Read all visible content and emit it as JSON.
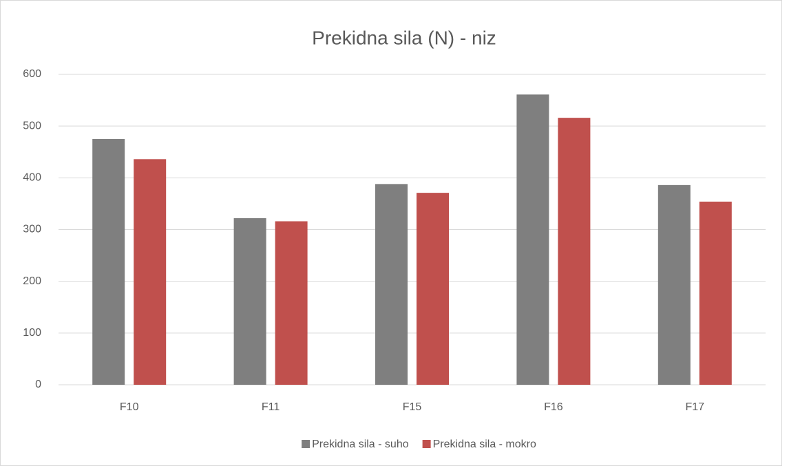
{
  "chart_data": {
    "type": "bar",
    "title": "Prekidna sila (N) - niz",
    "categories": [
      "F10",
      "F11",
      "F15",
      "F16",
      "F17"
    ],
    "series": [
      {
        "name": "Prekidna sila - suho",
        "color": "#7f7f7f",
        "values": [
          475,
          322,
          388,
          561,
          386
        ]
      },
      {
        "name": "Prekidna sila - mokro",
        "color": "#c0504d",
        "values": [
          436,
          316,
          371,
          516,
          354
        ]
      }
    ],
    "ylim": [
      0,
      600
    ],
    "yticks": [
      0,
      100,
      200,
      300,
      400,
      500,
      600
    ],
    "grid": true,
    "legend": "bottom"
  }
}
